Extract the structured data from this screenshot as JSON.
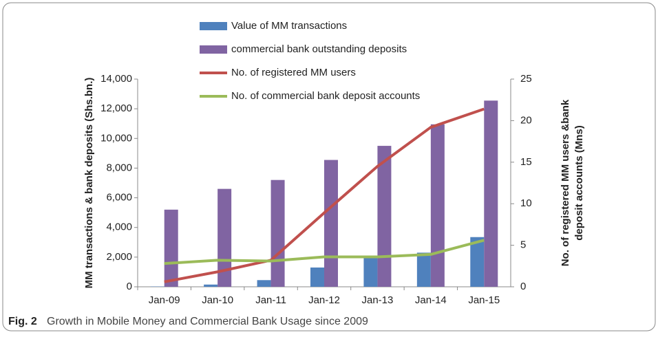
{
  "chart_data": {
    "type": "bar",
    "categories": [
      "Jan-09",
      "Jan-10",
      "Jan-11",
      "Jan-12",
      "Jan-13",
      "Jan-14",
      "Jan-15"
    ],
    "series": [
      {
        "name": "Value of MM transactions",
        "type": "bar",
        "color": "#4f81bd",
        "values": [
          20,
          150,
          450,
          1300,
          2000,
          2300,
          3350
        ]
      },
      {
        "name": "commercial bank outstanding deposits",
        "type": "bar",
        "color": "#8064a2",
        "values": [
          5200,
          6600,
          7200,
          8550,
          9500,
          10950,
          12550
        ]
      },
      {
        "name": "No. of registered MM users",
        "type": "line",
        "axis": "y2",
        "color": "#c0504d",
        "values": [
          0.6,
          1.8,
          3.2,
          8.9,
          14.5,
          19.2,
          21.4
        ]
      },
      {
        "name": "No. of commercial bank deposit accounts",
        "type": "line",
        "axis": "y2",
        "color": "#9bbb59",
        "values": [
          2.8,
          3.2,
          3.1,
          3.6,
          3.6,
          3.9,
          5.6
        ]
      }
    ],
    "ylabel": "MM transactions & bank deposits (Shs.bn.)",
    "y2label": [
      "No. of registered MM users &bank",
      "deposit accounts (Mns)"
    ],
    "ylim": [
      0,
      14000
    ],
    "yticks": [
      0,
      {
        "value": 2000,
        "label": "2,000"
      },
      {
        "value": 4000,
        "label": "4,000"
      },
      {
        "value": 6000,
        "label": "6,000"
      },
      {
        "value": 8000,
        "label": "8,000"
      },
      {
        "value": 10000,
        "label": "10,000"
      },
      {
        "value": 12000,
        "label": "12,000"
      },
      {
        "value": 14000,
        "label": "14,000"
      }
    ],
    "y2lim": [
      0,
      25
    ],
    "y2ticks": [
      0,
      5,
      10,
      15,
      20,
      25
    ],
    "legend": "top"
  },
  "caption": {
    "label": "Fig. 2",
    "text": "Growth in Mobile Money and Commercial Bank Usage since 2009"
  }
}
